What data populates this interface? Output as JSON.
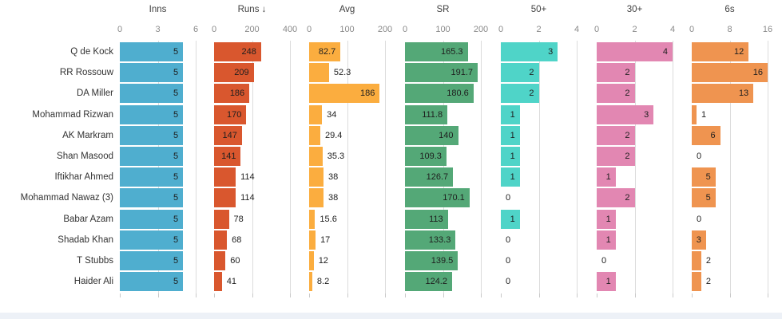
{
  "chart_data": {
    "type": "bar",
    "orientation": "horizontal",
    "grid": true,
    "panels": [
      {
        "label": "Inns",
        "sorted": false,
        "color": "#4FAECF",
        "axis": {
          "min": 0,
          "max": 6,
          "ticks": [
            0,
            3,
            6
          ]
        }
      },
      {
        "label": "Runs",
        "sorted": true,
        "sort_arrow": "↓",
        "color": "#D9572E",
        "axis": {
          "min": 0,
          "max": 400,
          "ticks": [
            0,
            200,
            400
          ]
        }
      },
      {
        "label": "Avg",
        "sorted": false,
        "color": "#FBAD3F",
        "axis": {
          "min": 0,
          "max": 200,
          "ticks": [
            0,
            100,
            200
          ]
        }
      },
      {
        "label": "SR",
        "sorted": false,
        "color": "#54A877",
        "axis": {
          "min": 0,
          "max": 200,
          "ticks": [
            0,
            100,
            200
          ]
        }
      },
      {
        "label": "50+",
        "sorted": false,
        "color": "#4FD4C8",
        "axis": {
          "min": 0,
          "max": 4,
          "ticks": [
            0,
            2,
            4
          ]
        }
      },
      {
        "label": "30+",
        "sorted": false,
        "color": "#E287B2",
        "axis": {
          "min": 0,
          "max": 4,
          "ticks": [
            0,
            2,
            4
          ]
        }
      },
      {
        "label": "6s",
        "sorted": false,
        "color": "#EF9450",
        "axis": {
          "min": 0,
          "max": 16,
          "ticks": [
            0,
            8,
            16
          ]
        }
      }
    ],
    "rows": [
      {
        "player": "Q de Kock",
        "values": [
          5,
          248,
          82.7,
          165.3,
          3,
          4,
          12
        ]
      },
      {
        "player": "RR Rossouw",
        "values": [
          5,
          209,
          52.3,
          191.7,
          2,
          2,
          16
        ]
      },
      {
        "player": "DA Miller",
        "values": [
          5,
          186,
          186,
          180.6,
          2,
          2,
          13
        ]
      },
      {
        "player": "Mohammad Rizwan",
        "values": [
          5,
          170,
          34,
          111.8,
          1,
          3,
          1
        ]
      },
      {
        "player": "AK Markram",
        "values": [
          5,
          147,
          29.4,
          140,
          1,
          2,
          6
        ]
      },
      {
        "player": "Shan Masood",
        "values": [
          5,
          141,
          35.3,
          109.3,
          1,
          2,
          0
        ]
      },
      {
        "player": "Iftikhar Ahmed",
        "values": [
          5,
          114,
          38,
          126.7,
          1,
          1,
          5
        ]
      },
      {
        "player": "Mohammad Nawaz (3)",
        "values": [
          5,
          114,
          38,
          170.1,
          0,
          2,
          5
        ]
      },
      {
        "player": "Babar Azam",
        "values": [
          5,
          78,
          15.6,
          113,
          1,
          1,
          0
        ]
      },
      {
        "player": "Shadab Khan",
        "values": [
          5,
          68,
          17,
          133.3,
          0,
          1,
          3
        ]
      },
      {
        "player": "T Stubbs",
        "values": [
          5,
          60,
          12,
          139.5,
          0,
          0,
          2
        ]
      },
      {
        "player": "Haider Ali",
        "values": [
          5,
          41,
          8.2,
          124.2,
          0,
          1,
          2
        ]
      }
    ]
  },
  "colors": {
    "background": "#FFFFFF",
    "grid_line": "#DCDCDC",
    "tick_mark": "#C9C9C9",
    "tick_label": "#8A8A8A",
    "header_text": "#3F3F3F",
    "row_label_text": "#333333",
    "value_text": "#1E1E1E",
    "bottom_band": "#EDF1F7"
  }
}
